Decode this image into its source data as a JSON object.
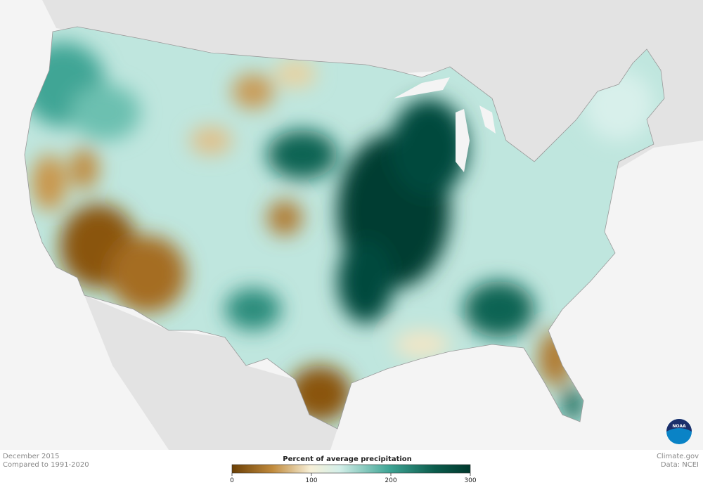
{
  "caption": {
    "period": "December 2015",
    "baseline": "Compared to 1991-2020"
  },
  "legend": {
    "title": "Percent of average precipitation",
    "range": [
      0,
      300
    ],
    "ticks": [
      0,
      100,
      200,
      300
    ]
  },
  "credit": {
    "site": "Climate.gov",
    "source": "Data: NCEI"
  },
  "logo": "NOAA"
}
